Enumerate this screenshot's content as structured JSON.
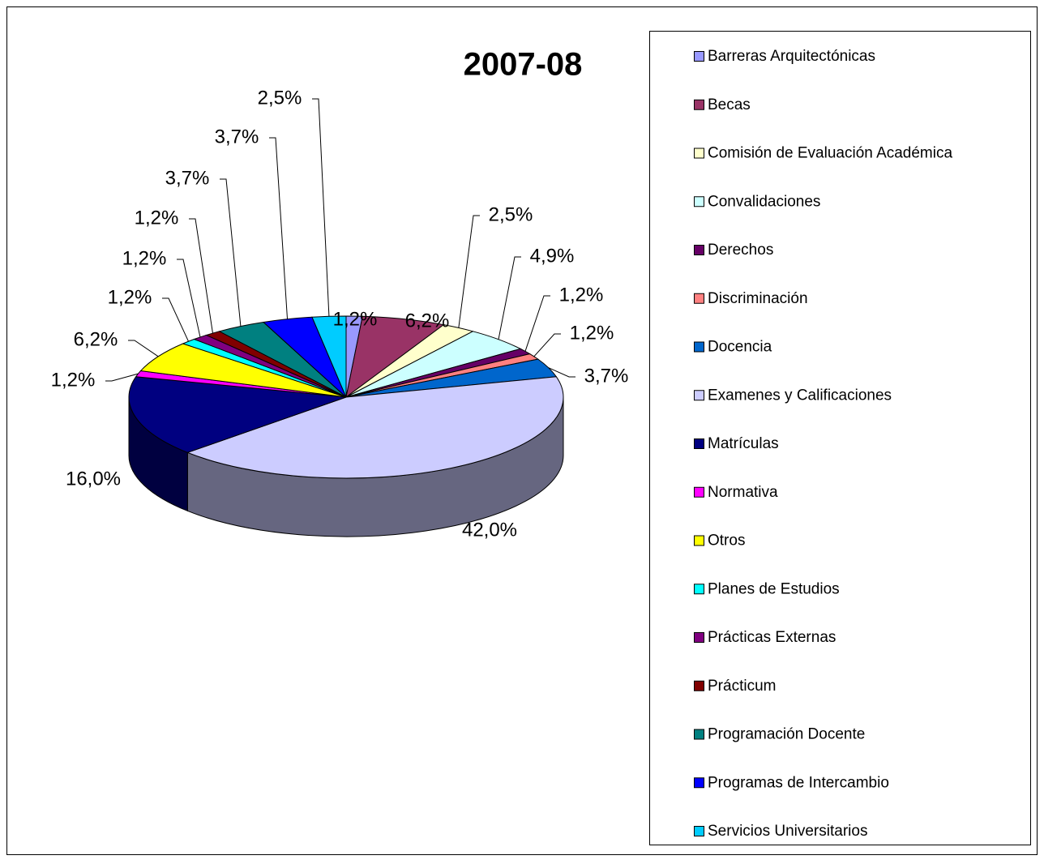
{
  "chart_data": {
    "type": "pie",
    "title": "2007-08",
    "categories": [
      "Barreras Arquitectónicas",
      "Becas",
      "Comisión de Evaluación Académica",
      "Convalidaciones",
      "Derechos",
      "Discriminación",
      "Docencia",
      "Examenes y Calificaciones",
      "Matrículas",
      "Normativa",
      "Otros",
      "Planes de Estudios",
      "Prácticas Externas",
      "Prácticum",
      "Programación Docente",
      "Programas de Intercambio",
      "Servicios Universitarios"
    ],
    "values": [
      1.2,
      6.2,
      2.5,
      4.9,
      1.2,
      1.2,
      3.7,
      42.0,
      16.0,
      1.2,
      6.2,
      1.2,
      1.2,
      1.2,
      3.7,
      3.7,
      2.5
    ],
    "value_labels": [
      "1,2%",
      "6,2%",
      "2,5%",
      "4,9%",
      "1,2%",
      "1,2%",
      "3,7%",
      "42,0%",
      "16,0%",
      "1,2%",
      "6,2%",
      "1,2%",
      "1,2%",
      "1,2%",
      "3,7%",
      "3,7%",
      "2,5%"
    ],
    "colors": [
      "#9999FF",
      "#993366",
      "#FFFFCC",
      "#CCFFFF",
      "#660066",
      "#FF8080",
      "#0066CC",
      "#CCCCFF",
      "#000080",
      "#FF00FF",
      "#FFFF00",
      "#00FFFF",
      "#800080",
      "#800000",
      "#008080",
      "#0000FF",
      "#00CCFF"
    ]
  }
}
